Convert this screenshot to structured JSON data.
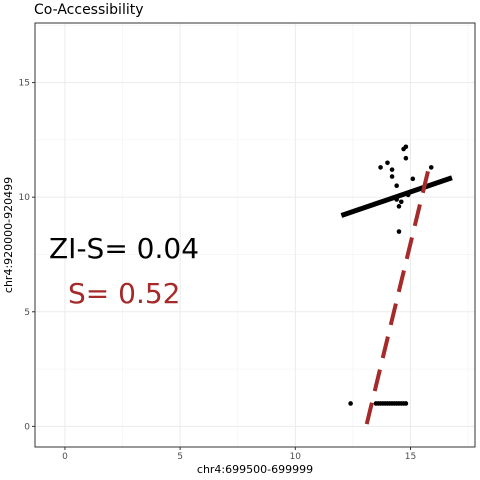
{
  "chart_data": {
    "type": "scatter",
    "title": "Co-Accessibility",
    "xlabel": "chr4:699500-699999",
    "ylabel": "chr4:920000-920499",
    "xlim": [
      -1.3,
      17.8
    ],
    "ylim": [
      -0.9,
      17.6
    ],
    "xticks": [
      0,
      5,
      10,
      15
    ],
    "yticks": [
      0,
      5,
      10,
      15
    ],
    "grid": true,
    "points": [
      [
        12.4,
        1.0
      ],
      [
        13.5,
        1.0
      ],
      [
        13.6,
        1.0
      ],
      [
        13.7,
        1.0
      ],
      [
        13.8,
        1.0
      ],
      [
        13.9,
        1.0
      ],
      [
        14.0,
        1.0
      ],
      [
        14.1,
        1.0
      ],
      [
        14.2,
        1.0
      ],
      [
        14.3,
        1.0
      ],
      [
        14.4,
        1.0
      ],
      [
        14.5,
        1.0
      ],
      [
        14.6,
        1.0
      ],
      [
        14.7,
        1.0
      ],
      [
        14.8,
        1.0
      ],
      [
        13.7,
        11.3
      ],
      [
        14.0,
        11.5
      ],
      [
        14.2,
        11.2
      ],
      [
        14.2,
        10.9
      ],
      [
        14.4,
        10.5
      ],
      [
        14.4,
        9.9
      ],
      [
        14.5,
        9.6
      ],
      [
        14.6,
        9.8
      ],
      [
        14.7,
        12.1
      ],
      [
        14.8,
        12.2
      ],
      [
        14.8,
        11.7
      ],
      [
        14.9,
        10.1
      ],
      [
        15.1,
        10.8
      ],
      [
        15.9,
        11.3
      ],
      [
        14.5,
        8.5
      ]
    ],
    "fit_zero_inflated": {
      "x": [
        12.0,
        16.8
      ],
      "y": [
        9.2,
        10.85
      ],
      "color": "#000000"
    },
    "fit_standard": {
      "x": [
        13.1,
        15.8
      ],
      "y": [
        0.1,
        11.3
      ],
      "color": "#a52a2a"
    },
    "annotations": [
      {
        "text": "ZI-S= 0.04",
        "color": "#000000"
      },
      {
        "text": "S= 0.52",
        "color": "#a52a2a"
      }
    ]
  }
}
